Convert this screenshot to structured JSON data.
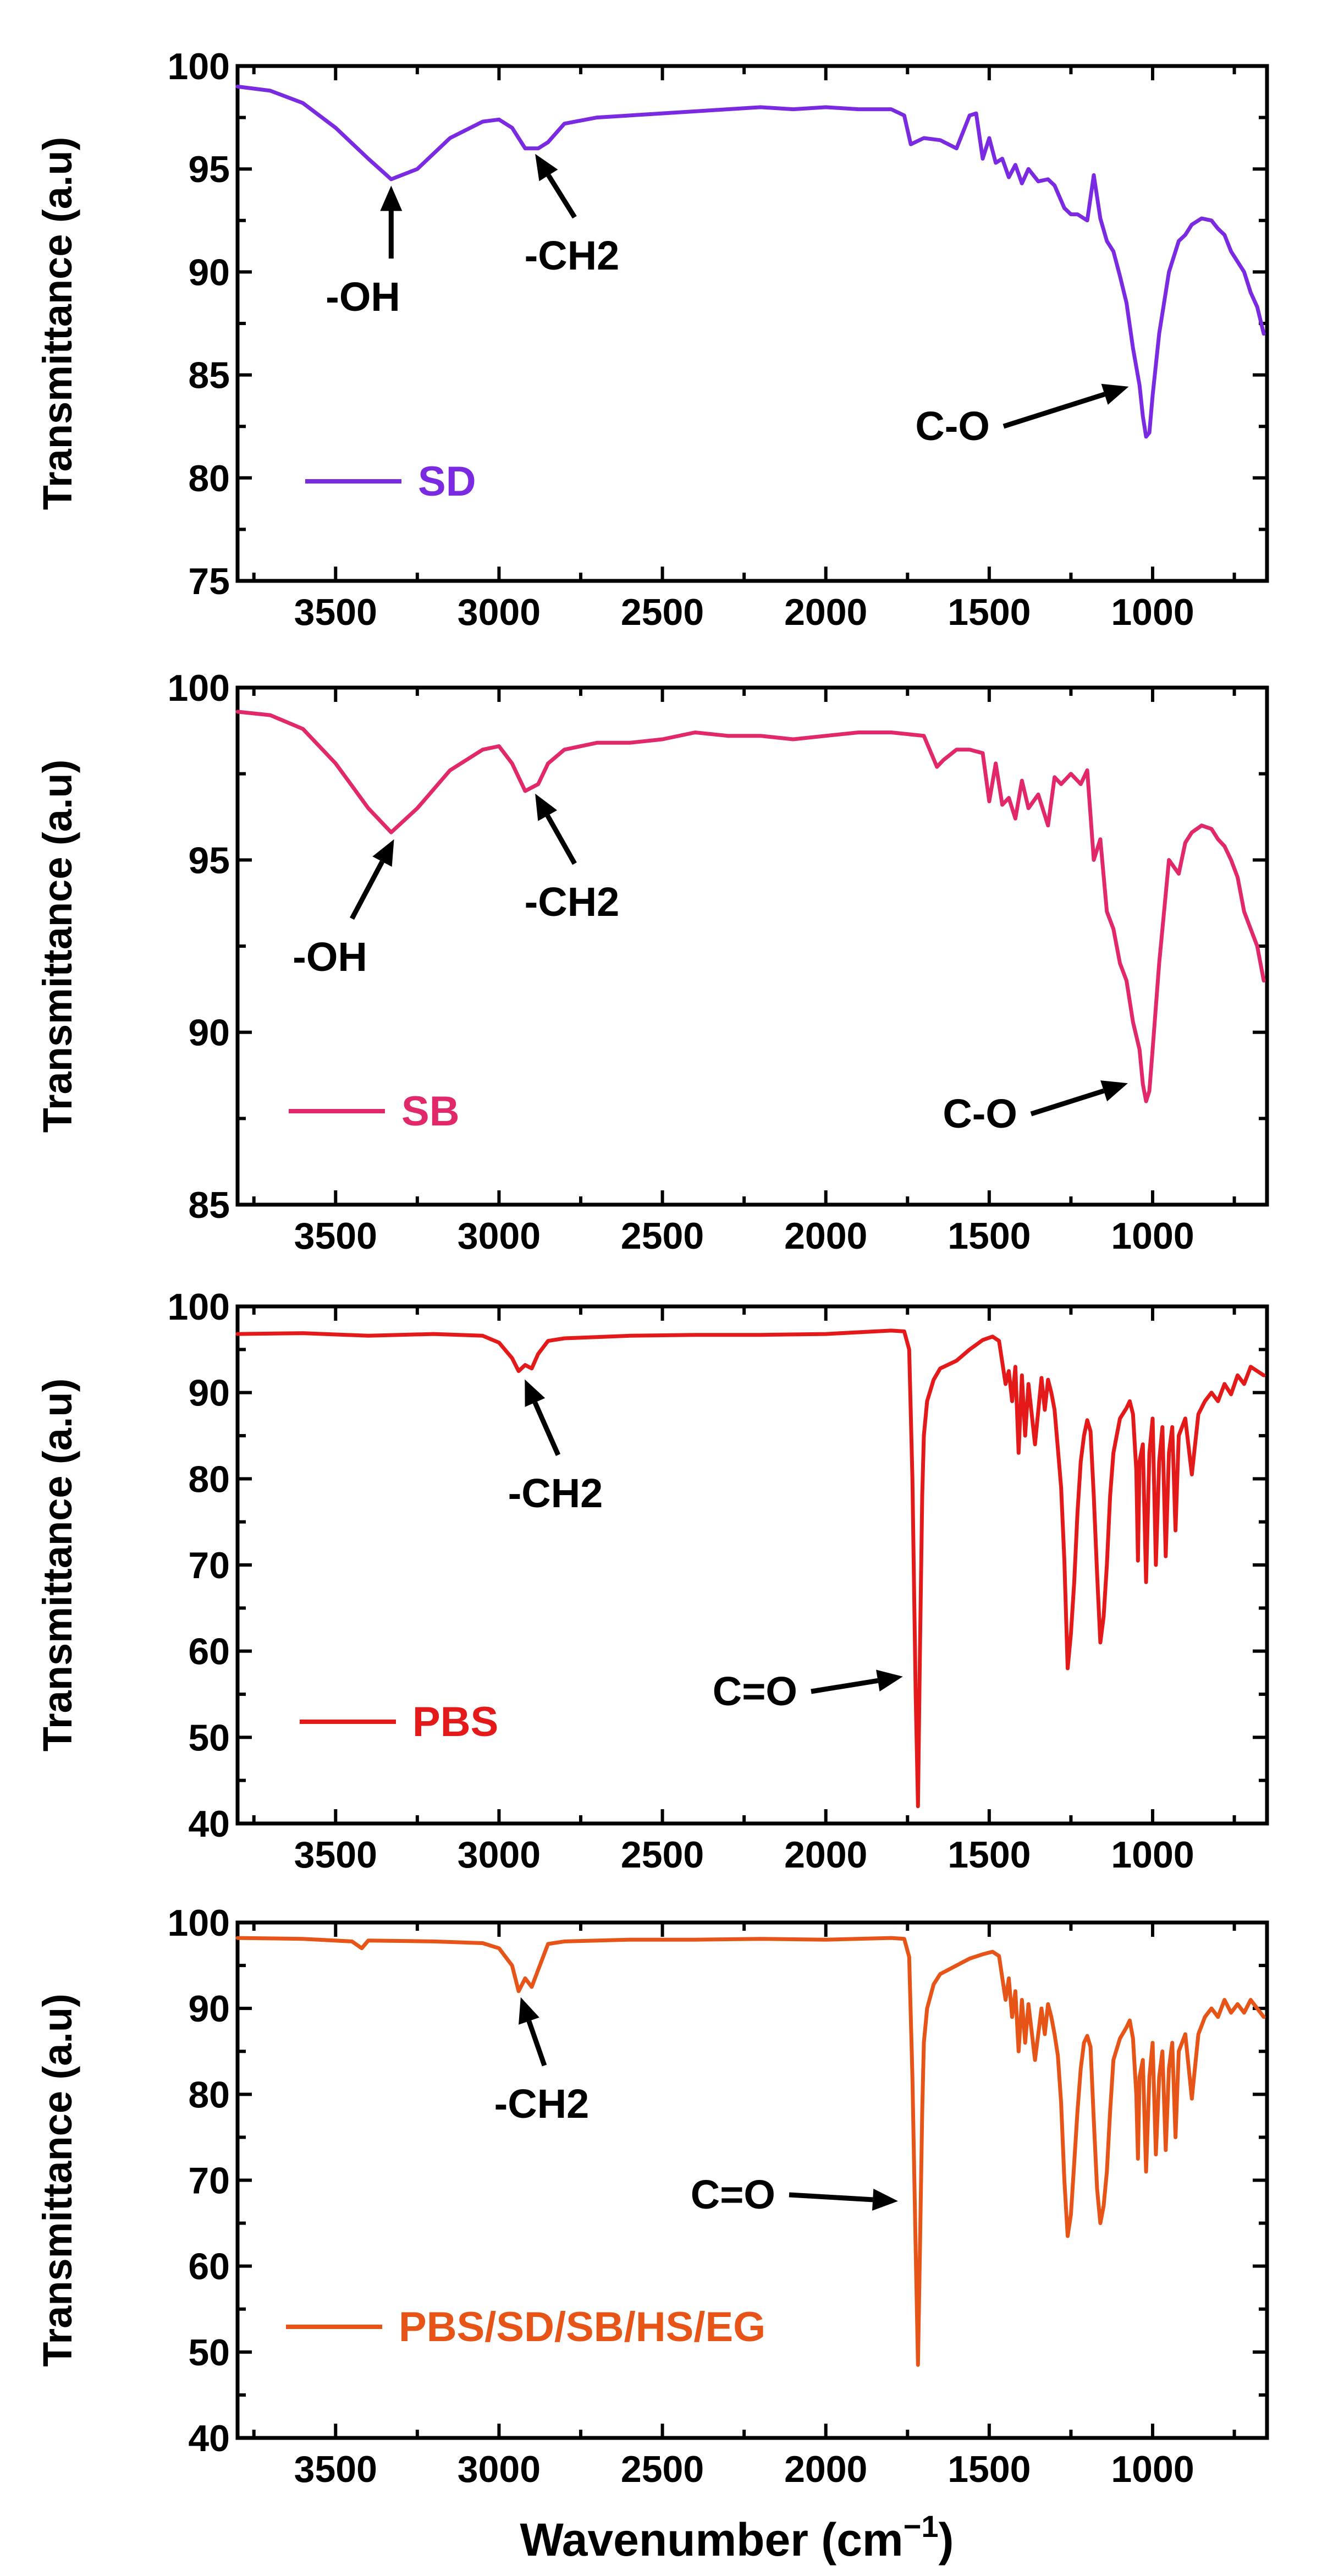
{
  "figure": {
    "xlabel": "Wavenumber (cm",
    "xlabel_sup": "−1",
    "xlabel_close": ")"
  },
  "chart_data": [
    {
      "type": "line",
      "legend": "SD",
      "legend_position": "bottom-left",
      "color": "#7a2be2",
      "xlabel": "",
      "ylabel": "Transmittance (a.u)",
      "xlim": [
        3800,
        650
      ],
      "ylim": [
        75,
        100
      ],
      "xticks": [
        3500,
        3000,
        2500,
        2000,
        1500,
        1000
      ],
      "yticks": [
        75,
        80,
        85,
        90,
        95,
        100
      ],
      "x": [
        3800,
        3700,
        3600,
        3500,
        3400,
        3330,
        3250,
        3150,
        3050,
        3000,
        2960,
        2920,
        2880,
        2850,
        2800,
        2700,
        2600,
        2500,
        2400,
        2300,
        2200,
        2100,
        2000,
        1900,
        1800,
        1760,
        1740,
        1700,
        1650,
        1600,
        1560,
        1540,
        1520,
        1500,
        1480,
        1460,
        1440,
        1420,
        1400,
        1380,
        1350,
        1320,
        1300,
        1270,
        1250,
        1230,
        1200,
        1180,
        1160,
        1140,
        1120,
        1100,
        1080,
        1060,
        1040,
        1030,
        1020,
        1010,
        1000,
        980,
        950,
        920,
        900,
        880,
        850,
        820,
        800,
        780,
        760,
        740,
        720,
        700,
        680,
        660
      ],
      "y": [
        99,
        98.8,
        98.2,
        97,
        95.5,
        94.5,
        95,
        96.5,
        97.3,
        97.4,
        97,
        96,
        96,
        96.3,
        97.2,
        97.5,
        97.6,
        97.7,
        97.8,
        97.9,
        98,
        97.9,
        98,
        97.9,
        97.9,
        97.6,
        96.2,
        96.5,
        96.4,
        96,
        97.6,
        97.7,
        95.5,
        96.5,
        95.3,
        95.5,
        94.6,
        95.2,
        94.3,
        95,
        94.4,
        94.5,
        94.2,
        93.1,
        92.8,
        92.8,
        92.5,
        94.7,
        92.6,
        91.5,
        91,
        89.8,
        88.5,
        86.3,
        84.5,
        83,
        82,
        82.2,
        84,
        87,
        90,
        91.5,
        91.8,
        92.3,
        92.6,
        92.5,
        92.1,
        91.8,
        91,
        90.5,
        90,
        89,
        88.3,
        87
      ],
      "annotations": [
        {
          "text": "-OH",
          "x": 3330,
          "y": 94.5
        },
        {
          "text": "-CH2",
          "x": 2900,
          "y": 96
        },
        {
          "text": "C-O",
          "x": 1040,
          "y": 84.6
        }
      ]
    },
    {
      "type": "line",
      "legend": "SB",
      "legend_position": "bottom-left",
      "color": "#e0286a",
      "xlabel": "",
      "ylabel": "Transmittance (a.u)",
      "xlim": [
        3800,
        650
      ],
      "ylim": [
        85,
        100
      ],
      "xticks": [
        3500,
        3000,
        2500,
        2000,
        1500,
        1000
      ],
      "yticks": [
        85,
        90,
        95,
        100
      ],
      "x": [
        3800,
        3700,
        3600,
        3500,
        3400,
        3330,
        3250,
        3150,
        3050,
        3000,
        2960,
        2920,
        2880,
        2850,
        2800,
        2700,
        2600,
        2500,
        2400,
        2300,
        2200,
        2100,
        2000,
        1900,
        1800,
        1700,
        1660,
        1640,
        1600,
        1560,
        1520,
        1500,
        1480,
        1460,
        1440,
        1420,
        1400,
        1380,
        1350,
        1320,
        1300,
        1280,
        1250,
        1220,
        1200,
        1180,
        1160,
        1140,
        1120,
        1100,
        1080,
        1060,
        1040,
        1030,
        1020,
        1010,
        1000,
        980,
        950,
        920,
        900,
        880,
        850,
        820,
        800,
        780,
        760,
        740,
        720,
        700,
        680,
        660
      ],
      "y": [
        99.3,
        99.2,
        98.8,
        97.8,
        96.5,
        95.8,
        96.5,
        97.6,
        98.2,
        98.3,
        97.8,
        97,
        97.2,
        97.8,
        98.2,
        98.4,
        98.4,
        98.5,
        98.7,
        98.6,
        98.6,
        98.5,
        98.6,
        98.7,
        98.7,
        98.6,
        97.7,
        97.9,
        98.2,
        98.2,
        98.1,
        96.7,
        97.8,
        96.6,
        96.8,
        96.2,
        97.3,
        96.5,
        96.9,
        96,
        97.4,
        97.2,
        97.5,
        97.2,
        97.6,
        95,
        95.6,
        93.5,
        93,
        92,
        91.5,
        90.3,
        89.5,
        88.5,
        88,
        88.3,
        89.5,
        92,
        95,
        94.6,
        95.5,
        95.8,
        96,
        95.9,
        95.6,
        95.4,
        95,
        94.5,
        93.5,
        93,
        92.5,
        91.5
      ],
      "annotations": [
        {
          "text": "-OH",
          "x": 3310,
          "y": 95.8
        },
        {
          "text": "-CH2",
          "x": 2900,
          "y": 97.1
        },
        {
          "text": "C-O",
          "x": 1050,
          "y": 88.6
        }
      ]
    },
    {
      "type": "line",
      "legend": "PBS",
      "legend_position": "bottom-left",
      "color": "#e41a1a",
      "xlabel": "",
      "ylabel": "Transmittance (a.u)",
      "xlim": [
        3800,
        650
      ],
      "ylim": [
        40,
        100
      ],
      "xticks": [
        3500,
        3000,
        2500,
        2000,
        1500,
        1000
      ],
      "yticks": [
        40,
        50,
        60,
        70,
        80,
        90,
        100
      ],
      "x": [
        3800,
        3600,
        3400,
        3200,
        3050,
        3000,
        2960,
        2940,
        2920,
        2900,
        2880,
        2850,
        2800,
        2600,
        2400,
        2200,
        2000,
        1800,
        1760,
        1745,
        1735,
        1725,
        1718,
        1712,
        1705,
        1700,
        1690,
        1670,
        1650,
        1600,
        1560,
        1520,
        1490,
        1470,
        1450,
        1440,
        1430,
        1420,
        1410,
        1400,
        1390,
        1380,
        1360,
        1340,
        1330,
        1320,
        1310,
        1300,
        1290,
        1280,
        1270,
        1260,
        1250,
        1240,
        1230,
        1220,
        1210,
        1200,
        1190,
        1180,
        1170,
        1160,
        1150,
        1140,
        1130,
        1120,
        1100,
        1080,
        1070,
        1060,
        1050,
        1045,
        1040,
        1030,
        1020,
        1010,
        1000,
        990,
        980,
        970,
        960,
        950,
        940,
        930,
        920,
        900,
        880,
        860,
        840,
        820,
        800,
        780,
        760,
        740,
        720,
        700,
        680,
        660
      ],
      "y": [
        96.8,
        96.9,
        96.6,
        96.8,
        96.6,
        95.8,
        94,
        92.5,
        93.2,
        92.8,
        94.5,
        96,
        96.3,
        96.6,
        96.7,
        96.7,
        96.8,
        97.2,
        97.1,
        95,
        80,
        55,
        42,
        60,
        78,
        85,
        89,
        91.5,
        92.8,
        93.7,
        95,
        96.1,
        96.5,
        96,
        91,
        92.5,
        89,
        93,
        83,
        92,
        85,
        91,
        84,
        91.7,
        88,
        91.5,
        90,
        88,
        83.5,
        79,
        70.5,
        58,
        62,
        68,
        76,
        82,
        85,
        86.8,
        85.5,
        78,
        69,
        61,
        64,
        70,
        78,
        83,
        87,
        88.2,
        89,
        87.5,
        81,
        70.5,
        82,
        84,
        68,
        83,
        87,
        70,
        82,
        86,
        71,
        83,
        86,
        74,
        85,
        87,
        80.5,
        87.5,
        89,
        90,
        89,
        91,
        89.8,
        92,
        91,
        93,
        92.5,
        92
      ],
      "annotations": [
        {
          "text": "-CH2",
          "x": 2930,
          "y": 92.3
        },
        {
          "text": "C=O",
          "x": 1740,
          "y": 57.2
        }
      ]
    },
    {
      "type": "line",
      "legend": "PBS/SD/SB/HS/EG",
      "legend_position": "bottom-left",
      "color": "#e65418",
      "xlabel": "",
      "ylabel": "Transmittance (a.u)",
      "xlim": [
        3800,
        650
      ],
      "ylim": [
        40,
        100
      ],
      "xticks": [
        3500,
        3000,
        2500,
        2000,
        1500,
        1000
      ],
      "yticks": [
        40,
        50,
        60,
        70,
        80,
        90,
        100
      ],
      "x": [
        3800,
        3600,
        3450,
        3420,
        3400,
        3200,
        3050,
        3000,
        2960,
        2940,
        2920,
        2900,
        2880,
        2850,
        2800,
        2600,
        2400,
        2200,
        2000,
        1800,
        1760,
        1745,
        1735,
        1725,
        1718,
        1712,
        1705,
        1700,
        1690,
        1670,
        1650,
        1600,
        1560,
        1520,
        1490,
        1470,
        1450,
        1440,
        1430,
        1420,
        1410,
        1400,
        1390,
        1380,
        1360,
        1340,
        1330,
        1320,
        1310,
        1300,
        1290,
        1280,
        1270,
        1260,
        1250,
        1240,
        1230,
        1220,
        1210,
        1200,
        1190,
        1180,
        1170,
        1160,
        1150,
        1140,
        1130,
        1120,
        1100,
        1080,
        1070,
        1060,
        1050,
        1045,
        1040,
        1030,
        1020,
        1010,
        1000,
        990,
        980,
        970,
        960,
        950,
        940,
        930,
        920,
        900,
        880,
        860,
        840,
        820,
        800,
        780,
        760,
        740,
        720,
        700,
        680,
        660
      ],
      "y": [
        98.2,
        98.1,
        97.8,
        97,
        97.9,
        97.8,
        97.6,
        97,
        95,
        92,
        93.5,
        92.5,
        94.5,
        97.5,
        97.8,
        98,
        98,
        98.1,
        98,
        98.2,
        98.1,
        96,
        82,
        62,
        48.5,
        62,
        78,
        86,
        90,
        92.8,
        94,
        95,
        95.8,
        96.3,
        96.6,
        96.1,
        91,
        93.5,
        89,
        92,
        85,
        91,
        86,
        90.5,
        84,
        90,
        87,
        90.5,
        89,
        87,
        84.5,
        79,
        70,
        63.5,
        66,
        72,
        78,
        83,
        86,
        86.8,
        85.5,
        77,
        69,
        65,
        67,
        71,
        78,
        84,
        86.5,
        87.8,
        88.6,
        86.5,
        80,
        72.5,
        82,
        84,
        71,
        82,
        86,
        73,
        82,
        85,
        73.5,
        83,
        86,
        75,
        85,
        87,
        79.5,
        87,
        89,
        90,
        89,
        91,
        89.5,
        90.5,
        89.5,
        91,
        90,
        89
      ],
      "annotations": [
        {
          "text": "-CH2",
          "x": 2940,
          "y": 92
        },
        {
          "text": "C=O",
          "x": 1750,
          "y": 67.5
        }
      ]
    }
  ]
}
